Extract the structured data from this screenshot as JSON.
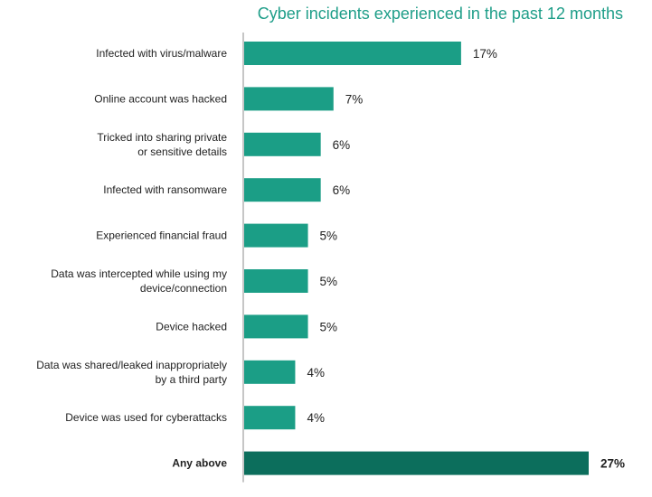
{
  "chart_data": {
    "type": "bar",
    "orientation": "horizontal",
    "title": "Cyber incidents experienced in the past 12 months",
    "unit": "%",
    "categories": [
      [
        "Infected with virus/malware"
      ],
      [
        "Online account was hacked"
      ],
      [
        "Tricked into sharing private",
        "or sensitive details"
      ],
      [
        "Infected with ransomware"
      ],
      [
        "Experienced financial fraud"
      ],
      [
        "Data was intercepted while using my",
        "device/connection"
      ],
      [
        "Device hacked"
      ],
      [
        "Data was shared/leaked inappropriately",
        "by a third party"
      ],
      [
        "Device was used for cyberattacks"
      ],
      [
        "Any above"
      ]
    ],
    "values": [
      17,
      7,
      6,
      6,
      5,
      5,
      5,
      4,
      4,
      27
    ],
    "value_labels": [
      "17%",
      "7%",
      "6%",
      "6%",
      "5%",
      "5%",
      "5%",
      "4%",
      "4%",
      "27%"
    ],
    "highlight_index": 9,
    "xlim": [
      0,
      27
    ],
    "grid": false,
    "legend": "none",
    "colors": {
      "bar": "#1b9e86",
      "highlight": "#0c6e5c",
      "title": "#1f9e89",
      "axis": "#8c8c8c"
    }
  }
}
